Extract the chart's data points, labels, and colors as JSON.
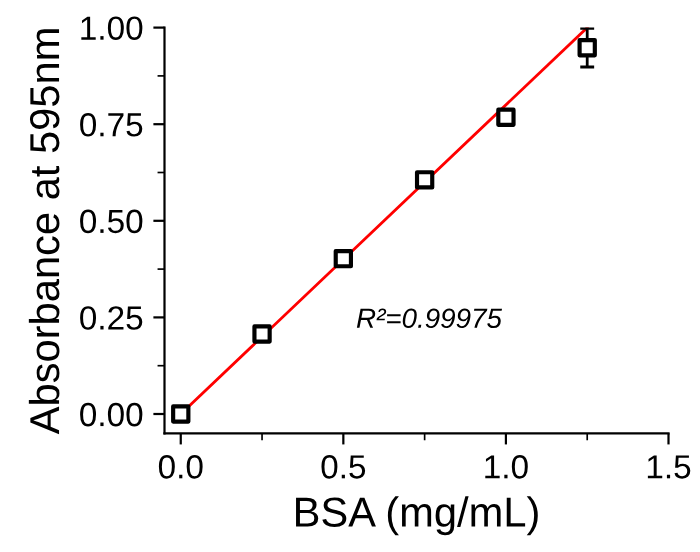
{
  "chart_data": {
    "type": "scatter",
    "xlabel": "BSA (mg/mL)",
    "ylabel": "Absorbance at 595nm",
    "x": [
      0,
      0.25,
      0.5,
      0.75,
      1.0,
      1.25
    ],
    "series": [
      {
        "color": "#000000",
        "marker": "square",
        "values": [
          0.0,
          0.207,
          0.402,
          0.606,
          0.768,
          0.948
        ],
        "errors": [
          null,
          null,
          null,
          null,
          null,
          0.05
        ]
      },
      {
        "type": "line",
        "color": "#ff0000",
        "marker": "none",
        "line_style": "solid",
        "x": [
          0,
          1.25
        ],
        "values": [
          0.0,
          1.0
        ]
      }
    ],
    "annotations": [
      "R²=0.99975"
    ],
    "xlim": [
      -0.05,
      1.5
    ],
    "ylim": [
      -0.05,
      1.0
    ],
    "xticks": [
      {
        "value": 0,
        "label": "0.0"
      },
      0.5,
      {
        "value": 1,
        "label": "1.0"
      },
      1.5
    ],
    "yticks": [
      {
        "value": 0,
        "label": "0.00"
      },
      0.25,
      {
        "value": 0.5,
        "label": "0.50"
      },
      0.75,
      {
        "value": 1,
        "label": "1.00"
      }
    ],
    "grid": false,
    "legend": false
  }
}
